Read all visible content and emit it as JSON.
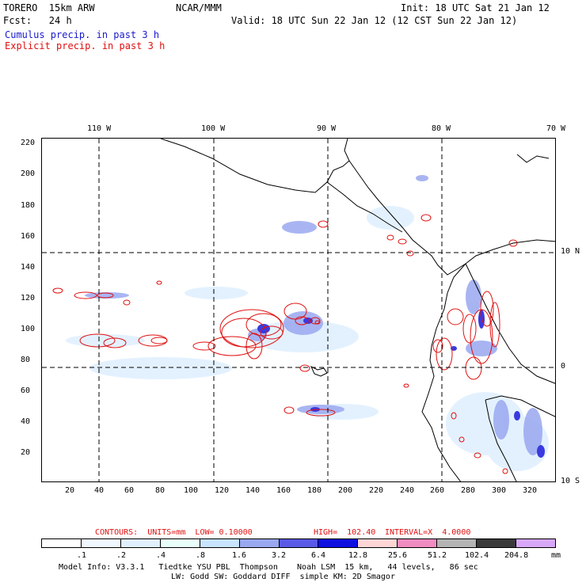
{
  "header": {
    "model": "TORERO  15km ARW",
    "org": "NCAR/MMM",
    "init": "Init: 18 UTC Sat 21 Jan 12",
    "fcst": "Fcst:   24 h",
    "valid": "Valid: 18 UTC Sun 22 Jan 12 (12 CST Sun 22 Jan 12)",
    "line_blue": "Cumulus precip. in past 3 h",
    "line_red": "Explicit precip. in past 3 h"
  },
  "map": {
    "lon_labels": [
      "110 W",
      "100 W",
      "90 W",
      "80 W",
      "70 W"
    ],
    "lat_labels": [
      "10 N",
      "0",
      "10 S"
    ],
    "y_ticks": [
      "220",
      "200",
      "180",
      "160",
      "140",
      "120",
      "100",
      "80",
      "60",
      "40",
      "20"
    ],
    "x_ticks": [
      "20",
      "40",
      "60",
      "80",
      "100",
      "120",
      "140",
      "160",
      "180",
      "200",
      "220",
      "240",
      "260",
      "280",
      "300",
      "320"
    ]
  },
  "contours_line": {
    "label": "CONTOURS:  UNITS=mm  LOW= 0.10000",
    "high": "HIGH=  102.40",
    "interval": "INTERVAL=X  4.0000"
  },
  "legend": {
    "levels": [
      ".1",
      ".2",
      ".4",
      ".8",
      "1.6",
      "3.2",
      "6.4",
      "12.8",
      "25.6",
      "51.2",
      "102.4",
      "204.8"
    ],
    "unit": "mm",
    "colors": [
      "#ffffff",
      "#f0f8ff",
      "#e0f0ff",
      "#e8fffa",
      "#c8e4ff",
      "#9aa8f0",
      "#5a5ae6",
      "#1010e0",
      "#ffd6d6",
      "#f08cc0",
      "#b4b4b4",
      "#3a3a3a",
      "#d8a8f8"
    ]
  },
  "footer": {
    "line1": "Model Info: V3.3.1   Tiedtke YSU PBL  Thompson    Noah LSM  15 km,   44 levels,   86 sec",
    "line2": "LW: Godd SW: Goddard DIFF  simple KM: 2D Smagor"
  }
}
